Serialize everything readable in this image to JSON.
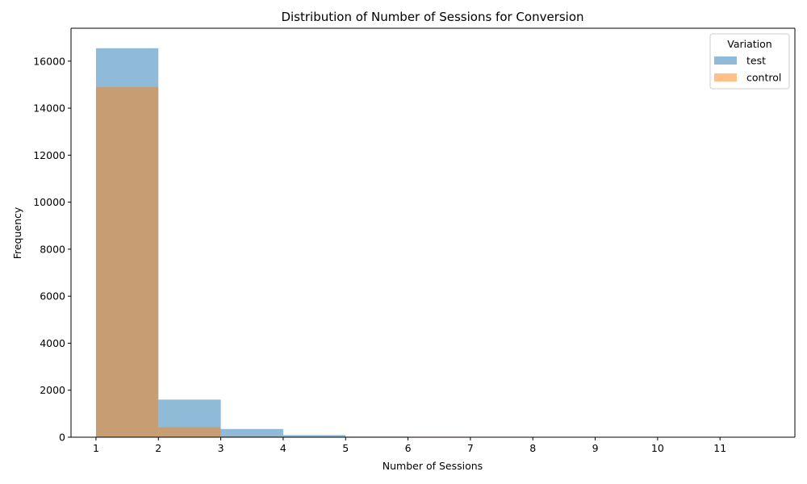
{
  "chart_data": {
    "type": "bar",
    "subtype": "overlapping-histogram",
    "title": "Distribution of Number of Sessions for Conversion",
    "xlabel": "Number of Sessions",
    "ylabel": "Frequency",
    "xlim": [
      0.6,
      12.2
    ],
    "ylim": [
      0,
      17400
    ],
    "xticks": [
      1,
      2,
      3,
      4,
      5,
      6,
      7,
      8,
      9,
      10,
      11
    ],
    "yticks": [
      0,
      2000,
      4000,
      6000,
      8000,
      10000,
      12000,
      14000,
      16000
    ],
    "bin_edges": [
      1,
      2,
      3,
      4,
      5,
      6,
      7,
      8,
      9,
      10,
      11,
      12
    ],
    "legend": {
      "title": "Variation",
      "position": "top-right"
    },
    "series": [
      {
        "name": "test",
        "color": "#1f77b4",
        "opacity": 0.5,
        "values": [
          16550,
          1600,
          350,
          90,
          25,
          10,
          5,
          3,
          0,
          0,
          0
        ]
      },
      {
        "name": "control",
        "color": "#ff7f0e",
        "opacity": 0.5,
        "values": [
          14900,
          420,
          40,
          8,
          2,
          1,
          0,
          0,
          0,
          0,
          0
        ]
      }
    ]
  }
}
